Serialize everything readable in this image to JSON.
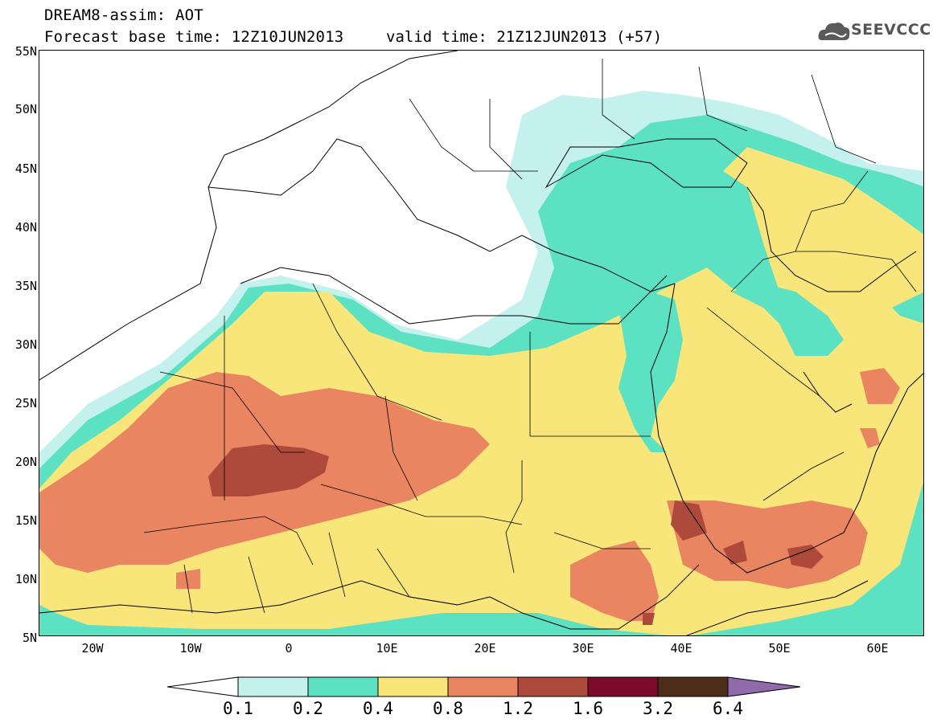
{
  "header": {
    "title_line1": "DREAM8-assim: AOT",
    "title_line2": "Forecast base time: 12Z10JUN2013",
    "valid_time": "valid time: 21Z12JUN2013 (+57)",
    "logo_text": "SEEVCCC"
  },
  "map": {
    "region": "North Africa, Mediterranean, Middle East",
    "lat_labels": [
      "55N",
      "50N",
      "45N",
      "40N",
      "35N",
      "30N",
      "25N",
      "20N",
      "15N",
      "10N",
      "5N"
    ],
    "lon_labels": [
      "20W",
      "10W",
      "0",
      "10E",
      "20E",
      "30E",
      "40E",
      "50E",
      "60E"
    ],
    "variable": "AOT"
  },
  "colorbar": {
    "labels": [
      "0.1",
      "0.2",
      "0.4",
      "0.8",
      "1.2",
      "1.6",
      "3.2",
      "6.4"
    ],
    "colors": [
      "#ffffff",
      "#c4f1ee",
      "#5ce1c3",
      "#f8e67a",
      "#e98560",
      "#ad4a3c",
      "#7c0a2a",
      "#4e2e1a",
      "#8f6bab"
    ]
  }
}
